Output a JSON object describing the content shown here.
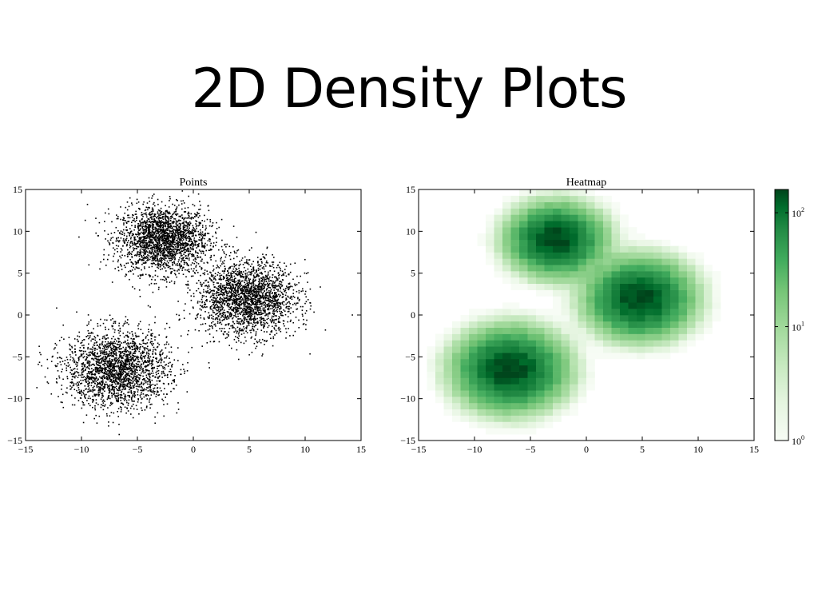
{
  "slide": {
    "title": "2D Density Plots"
  },
  "chart_data": [
    {
      "type": "scatter",
      "title": "Points",
      "xlabel": "",
      "ylabel": "",
      "xlim": [
        -15,
        15
      ],
      "ylim": [
        -15,
        15
      ],
      "xticks": [
        -15,
        -10,
        -5,
        0,
        5,
        10,
        15
      ],
      "yticks": [
        -15,
        -10,
        -5,
        0,
        5,
        10,
        15
      ],
      "xtick_labels": [
        "−15",
        "−10",
        "−5",
        "0",
        "5",
        "10",
        "15"
      ],
      "ytick_labels": [
        "−15",
        "−10",
        "−5",
        "0",
        "5",
        "10",
        "15"
      ],
      "grid": false,
      "marker_color": "#000000",
      "clusters": [
        {
          "center": [
            -2.7,
            9.0
          ],
          "std": 2.0
        },
        {
          "center": [
            4.8,
            2.0
          ],
          "std": 2.2
        },
        {
          "center": [
            -6.8,
            -6.5
          ],
          "std": 2.3
        }
      ]
    },
    {
      "type": "heatmap",
      "title": "Heatmap",
      "xlabel": "",
      "ylabel": "",
      "xlim": [
        -15,
        15
      ],
      "ylim": [
        -15,
        15
      ],
      "xticks": [
        -15,
        -10,
        -5,
        0,
        5,
        10,
        15
      ],
      "yticks": [
        -15,
        -10,
        -5,
        0,
        5,
        10,
        15
      ],
      "xtick_labels": [
        "−15",
        "−10",
        "−5",
        "0",
        "5",
        "10",
        "15"
      ],
      "ytick_labels": [
        "−15",
        "−10",
        "−5",
        "0",
        "5",
        "10",
        "15"
      ],
      "grid": false,
      "colormap": "Greens",
      "color_low": "#f7fcf5",
      "color_high": "#00441b",
      "log_scale": true,
      "bins": 40,
      "clusters": [
        {
          "center": [
            -2.7,
            9.0
          ],
          "std": 2.0
        },
        {
          "center": [
            4.8,
            2.0
          ],
          "std": 2.2
        },
        {
          "center": [
            -6.8,
            -6.5
          ],
          "std": 2.3
        }
      ],
      "colorbar": {
        "scale": "log",
        "range": [
          1,
          160
        ],
        "ticks": [
          {
            "value": 1,
            "base": "10",
            "exp": "0"
          },
          {
            "value": 10,
            "base": "10",
            "exp": "1"
          },
          {
            "value": 100,
            "base": "10",
            "exp": "2"
          }
        ]
      }
    }
  ]
}
